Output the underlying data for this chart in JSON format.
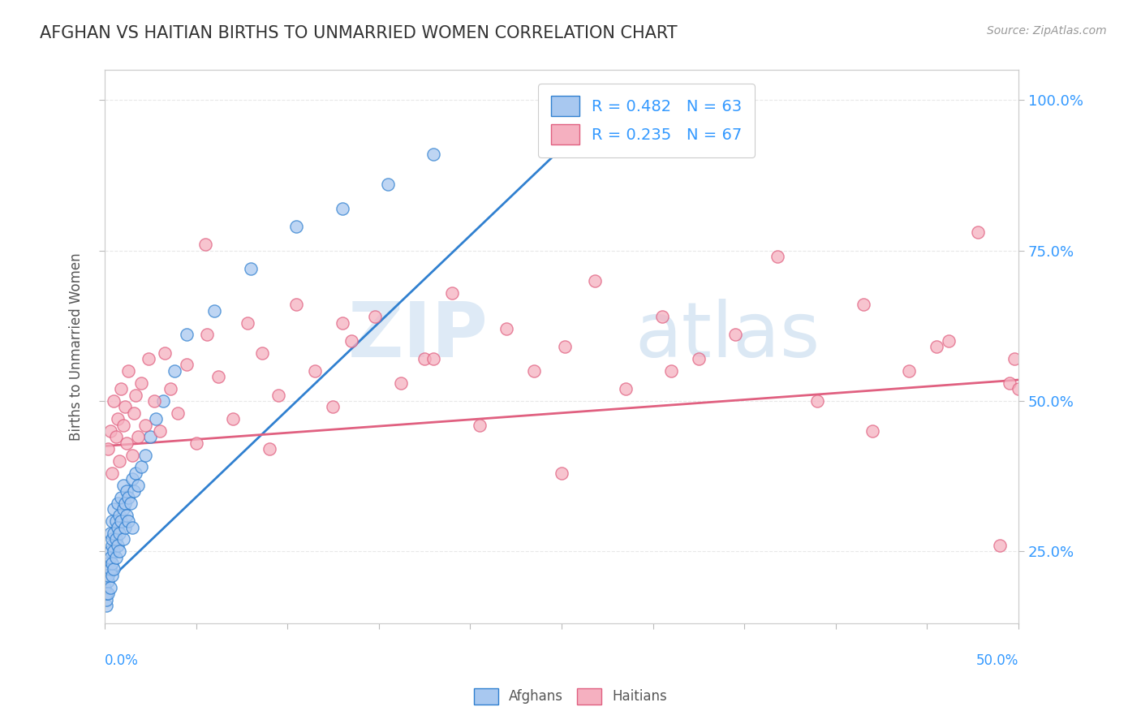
{
  "title": "AFGHAN VS HAITIAN BIRTHS TO UNMARRIED WOMEN CORRELATION CHART",
  "source": "Source: ZipAtlas.com",
  "ylabel": "Births to Unmarried Women",
  "legend_label1": "R = 0.482   N = 63",
  "legend_label2": "R = 0.235   N = 67",
  "afghan_color": "#a8c8f0",
  "haitian_color": "#f5b0c0",
  "afghan_line_color": "#3080d0",
  "haitian_line_color": "#e06080",
  "legend_text_color": "#3399ff",
  "watermark_zip": "ZIP",
  "watermark_atlas": "atlas",
  "xlim": [
    0.0,
    0.5
  ],
  "ylim": [
    0.13,
    1.05
  ],
  "ytick_vals": [
    0.25,
    0.5,
    0.75,
    1.0
  ],
  "background_color": "#ffffff",
  "grid_color": "#e8e8e8",
  "afghan_scatter_x": [
    0.0,
    0.001,
    0.001,
    0.001,
    0.001,
    0.002,
    0.002,
    0.002,
    0.002,
    0.003,
    0.003,
    0.003,
    0.003,
    0.003,
    0.004,
    0.004,
    0.004,
    0.004,
    0.004,
    0.005,
    0.005,
    0.005,
    0.005,
    0.006,
    0.006,
    0.006,
    0.007,
    0.007,
    0.007,
    0.008,
    0.008,
    0.008,
    0.009,
    0.009,
    0.01,
    0.01,
    0.01,
    0.011,
    0.011,
    0.012,
    0.012,
    0.013,
    0.013,
    0.014,
    0.015,
    0.015,
    0.016,
    0.017,
    0.018,
    0.02,
    0.022,
    0.025,
    0.028,
    0.032,
    0.038,
    0.045,
    0.06,
    0.08,
    0.105,
    0.13,
    0.155,
    0.18,
    0.25
  ],
  "afghan_scatter_y": [
    0.19,
    0.16,
    0.17,
    0.22,
    0.18,
    0.2,
    0.23,
    0.18,
    0.21,
    0.25,
    0.22,
    0.19,
    0.28,
    0.24,
    0.21,
    0.26,
    0.3,
    0.23,
    0.27,
    0.22,
    0.25,
    0.28,
    0.32,
    0.24,
    0.27,
    0.3,
    0.29,
    0.26,
    0.33,
    0.28,
    0.31,
    0.25,
    0.3,
    0.34,
    0.27,
    0.32,
    0.36,
    0.29,
    0.33,
    0.31,
    0.35,
    0.3,
    0.34,
    0.33,
    0.29,
    0.37,
    0.35,
    0.38,
    0.36,
    0.39,
    0.41,
    0.44,
    0.47,
    0.5,
    0.55,
    0.61,
    0.65,
    0.72,
    0.79,
    0.82,
    0.86,
    0.91,
    1.01
  ],
  "haitian_scatter_x": [
    0.002,
    0.003,
    0.004,
    0.005,
    0.006,
    0.007,
    0.008,
    0.009,
    0.01,
    0.011,
    0.012,
    0.013,
    0.015,
    0.016,
    0.017,
    0.018,
    0.02,
    0.022,
    0.024,
    0.027,
    0.03,
    0.033,
    0.036,
    0.04,
    0.045,
    0.05,
    0.056,
    0.062,
    0.07,
    0.078,
    0.086,
    0.095,
    0.105,
    0.115,
    0.125,
    0.135,
    0.148,
    0.162,
    0.175,
    0.19,
    0.205,
    0.22,
    0.235,
    0.252,
    0.268,
    0.285,
    0.305,
    0.325,
    0.345,
    0.368,
    0.39,
    0.415,
    0.44,
    0.462,
    0.478,
    0.495,
    0.498,
    0.055,
    0.09,
    0.13,
    0.18,
    0.25,
    0.31,
    0.42,
    0.455,
    0.49,
    0.5
  ],
  "haitian_scatter_y": [
    0.42,
    0.45,
    0.38,
    0.5,
    0.44,
    0.47,
    0.4,
    0.52,
    0.46,
    0.49,
    0.43,
    0.55,
    0.41,
    0.48,
    0.51,
    0.44,
    0.53,
    0.46,
    0.57,
    0.5,
    0.45,
    0.58,
    0.52,
    0.48,
    0.56,
    0.43,
    0.61,
    0.54,
    0.47,
    0.63,
    0.58,
    0.51,
    0.66,
    0.55,
    0.49,
    0.6,
    0.64,
    0.53,
    0.57,
    0.68,
    0.46,
    0.62,
    0.55,
    0.59,
    0.7,
    0.52,
    0.64,
    0.57,
    0.61,
    0.74,
    0.5,
    0.66,
    0.55,
    0.6,
    0.78,
    0.53,
    0.57,
    0.76,
    0.42,
    0.63,
    0.57,
    0.38,
    0.55,
    0.45,
    0.59,
    0.26,
    0.52
  ],
  "afghan_trend_x": [
    0.0,
    0.25
  ],
  "afghan_trend_y": [
    0.195,
    0.92
  ],
  "haitian_trend_x": [
    0.0,
    0.5
  ],
  "haitian_trend_y": [
    0.425,
    0.535
  ]
}
